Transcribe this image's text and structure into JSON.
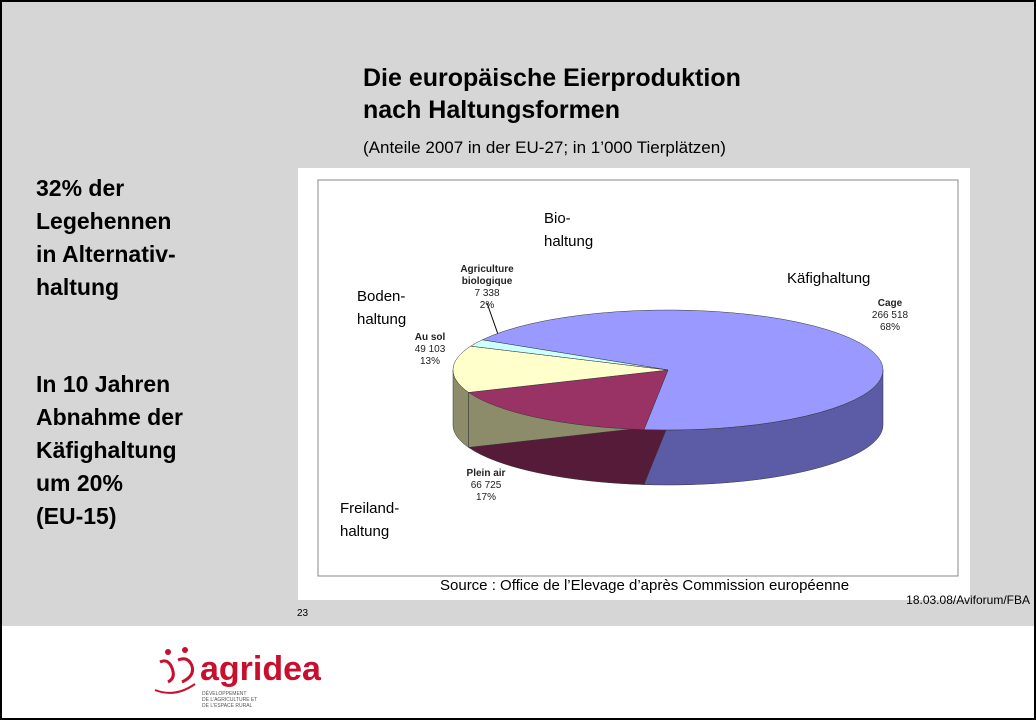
{
  "slide": {
    "title_lines": [
      "Die europäische Eierproduktion",
      "nach Haltungsformen"
    ],
    "subtitle": "(Anteile 2007 in der EU-27; in 1’000 Tierplätzen)",
    "side_text_1": [
      "32% der",
      "Legehennen",
      "in Alternativ-",
      "haltung"
    ],
    "side_text_2": [
      "In 10 Jahren",
      "Abnahme der",
      "Käfighaltung",
      "um 20%",
      "(EU-15)"
    ],
    "slide_number": "23",
    "footer": "18.03.08/Aviforum/FBA",
    "logo": "agridea",
    "logo_tagline": [
      "DÉVELOPPEMENT",
      "DE L'AGRICULTURE ET",
      "DE L'ESPACE RURAL"
    ]
  },
  "chart_data": {
    "type": "pie3d",
    "categories": [
      "Cage",
      "Plein air",
      "Au sol",
      "Agriculture biologique"
    ],
    "values": [
      266518,
      66725,
      49103,
      7338
    ],
    "value_labels": [
      "266 518",
      "66 725",
      "49 103",
      "7 338"
    ],
    "percentages": [
      68,
      17,
      13,
      2
    ],
    "percent_labels": [
      "68%",
      "17%",
      "13%",
      "2%"
    ],
    "annotations": [
      [
        "Käfighaltung"
      ],
      [
        "Freiland-",
        "haltung"
      ],
      [
        "Boden-",
        "haltung"
      ],
      [
        "Bio-",
        "haltung"
      ]
    ],
    "colors": [
      "#9999ff",
      "#993366",
      "#ffffcc",
      "#ccffff"
    ],
    "side_colors": [
      "#5b5ba6",
      "#571b3a",
      "#8c8c6a",
      "#7fa8a8"
    ],
    "source": "Source : Office de l’Elevage d’après Commission européenne"
  }
}
